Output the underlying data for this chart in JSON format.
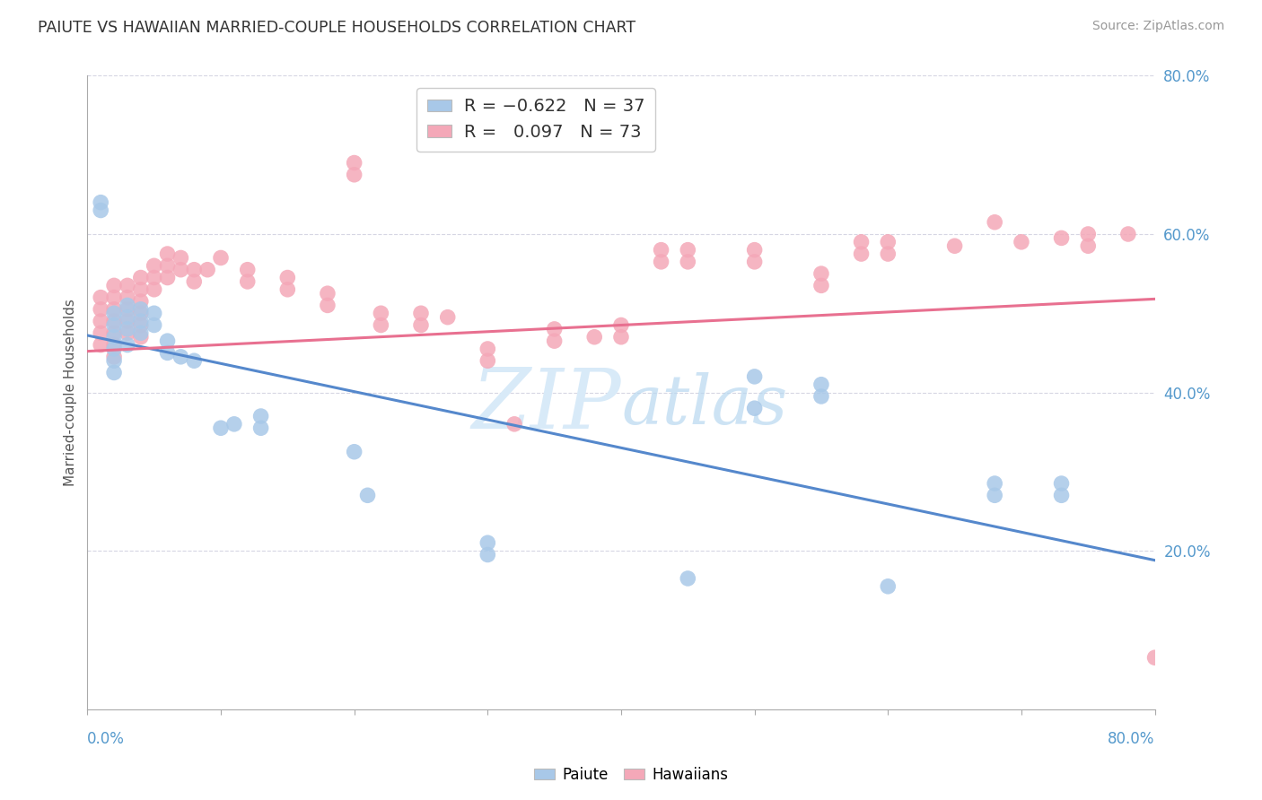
{
  "title": "PAIUTE VS HAWAIIAN MARRIED-COUPLE HOUSEHOLDS CORRELATION CHART",
  "source": "Source: ZipAtlas.com",
  "ylabel": "Married-couple Households",
  "xmin": 0.0,
  "xmax": 0.8,
  "ymin": 0.0,
  "ymax": 0.8,
  "yticks": [
    0.2,
    0.4,
    0.6,
    0.8
  ],
  "ytick_labels": [
    "20.0%",
    "40.0%",
    "60.0%",
    "80.0%"
  ],
  "paiute_color": "#a8c8e8",
  "hawaiian_color": "#f4a8b8",
  "paiute_line_color": "#5588cc",
  "hawaiian_line_color": "#e87090",
  "background_color": "#ffffff",
  "grid_color": "#ccccdd",
  "title_color": "#333333",
  "axis_label_color": "#5599cc",
  "watermark_color": "#d8eaf8",
  "paiute_line_start_y": 0.472,
  "paiute_line_end_y": 0.188,
  "hawaiian_line_start_y": 0.452,
  "hawaiian_line_end_y": 0.518,
  "paiute_points": [
    [
      0.01,
      0.63
    ],
    [
      0.01,
      0.64
    ],
    [
      0.02,
      0.5
    ],
    [
      0.02,
      0.485
    ],
    [
      0.02,
      0.47
    ],
    [
      0.02,
      0.455
    ],
    [
      0.02,
      0.44
    ],
    [
      0.02,
      0.425
    ],
    [
      0.03,
      0.51
    ],
    [
      0.03,
      0.495
    ],
    [
      0.03,
      0.48
    ],
    [
      0.03,
      0.46
    ],
    [
      0.04,
      0.505
    ],
    [
      0.04,
      0.49
    ],
    [
      0.04,
      0.475
    ],
    [
      0.05,
      0.5
    ],
    [
      0.05,
      0.485
    ],
    [
      0.06,
      0.465
    ],
    [
      0.06,
      0.45
    ],
    [
      0.07,
      0.445
    ],
    [
      0.08,
      0.44
    ],
    [
      0.1,
      0.355
    ],
    [
      0.11,
      0.36
    ],
    [
      0.13,
      0.355
    ],
    [
      0.13,
      0.37
    ],
    [
      0.2,
      0.325
    ],
    [
      0.21,
      0.27
    ],
    [
      0.3,
      0.195
    ],
    [
      0.3,
      0.21
    ],
    [
      0.45,
      0.165
    ],
    [
      0.5,
      0.38
    ],
    [
      0.5,
      0.42
    ],
    [
      0.55,
      0.395
    ],
    [
      0.55,
      0.41
    ],
    [
      0.6,
      0.155
    ],
    [
      0.68,
      0.285
    ],
    [
      0.68,
      0.27
    ],
    [
      0.73,
      0.285
    ],
    [
      0.73,
      0.27
    ]
  ],
  "hawaiian_points": [
    [
      0.01,
      0.52
    ],
    [
      0.01,
      0.505
    ],
    [
      0.01,
      0.49
    ],
    [
      0.01,
      0.475
    ],
    [
      0.01,
      0.46
    ],
    [
      0.02,
      0.535
    ],
    [
      0.02,
      0.52
    ],
    [
      0.02,
      0.505
    ],
    [
      0.02,
      0.49
    ],
    [
      0.02,
      0.475
    ],
    [
      0.02,
      0.46
    ],
    [
      0.02,
      0.445
    ],
    [
      0.03,
      0.535
    ],
    [
      0.03,
      0.52
    ],
    [
      0.03,
      0.505
    ],
    [
      0.03,
      0.49
    ],
    [
      0.03,
      0.475
    ],
    [
      0.04,
      0.545
    ],
    [
      0.04,
      0.53
    ],
    [
      0.04,
      0.515
    ],
    [
      0.04,
      0.5
    ],
    [
      0.04,
      0.485
    ],
    [
      0.04,
      0.47
    ],
    [
      0.05,
      0.56
    ],
    [
      0.05,
      0.545
    ],
    [
      0.05,
      0.53
    ],
    [
      0.06,
      0.575
    ],
    [
      0.06,
      0.56
    ],
    [
      0.06,
      0.545
    ],
    [
      0.07,
      0.57
    ],
    [
      0.07,
      0.555
    ],
    [
      0.08,
      0.555
    ],
    [
      0.08,
      0.54
    ],
    [
      0.09,
      0.555
    ],
    [
      0.1,
      0.57
    ],
    [
      0.12,
      0.555
    ],
    [
      0.12,
      0.54
    ],
    [
      0.15,
      0.545
    ],
    [
      0.15,
      0.53
    ],
    [
      0.18,
      0.525
    ],
    [
      0.18,
      0.51
    ],
    [
      0.2,
      0.69
    ],
    [
      0.2,
      0.675
    ],
    [
      0.22,
      0.5
    ],
    [
      0.22,
      0.485
    ],
    [
      0.25,
      0.485
    ],
    [
      0.25,
      0.5
    ],
    [
      0.27,
      0.495
    ],
    [
      0.3,
      0.455
    ],
    [
      0.3,
      0.44
    ],
    [
      0.32,
      0.36
    ],
    [
      0.35,
      0.48
    ],
    [
      0.35,
      0.465
    ],
    [
      0.38,
      0.47
    ],
    [
      0.4,
      0.47
    ],
    [
      0.4,
      0.485
    ],
    [
      0.43,
      0.565
    ],
    [
      0.43,
      0.58
    ],
    [
      0.45,
      0.565
    ],
    [
      0.45,
      0.58
    ],
    [
      0.5,
      0.565
    ],
    [
      0.5,
      0.58
    ],
    [
      0.55,
      0.535
    ],
    [
      0.55,
      0.55
    ],
    [
      0.58,
      0.59
    ],
    [
      0.58,
      0.575
    ],
    [
      0.6,
      0.59
    ],
    [
      0.6,
      0.575
    ],
    [
      0.65,
      0.585
    ],
    [
      0.68,
      0.615
    ],
    [
      0.7,
      0.59
    ],
    [
      0.73,
      0.595
    ],
    [
      0.75,
      0.585
    ],
    [
      0.75,
      0.6
    ],
    [
      0.78,
      0.6
    ],
    [
      0.8,
      0.065
    ]
  ]
}
